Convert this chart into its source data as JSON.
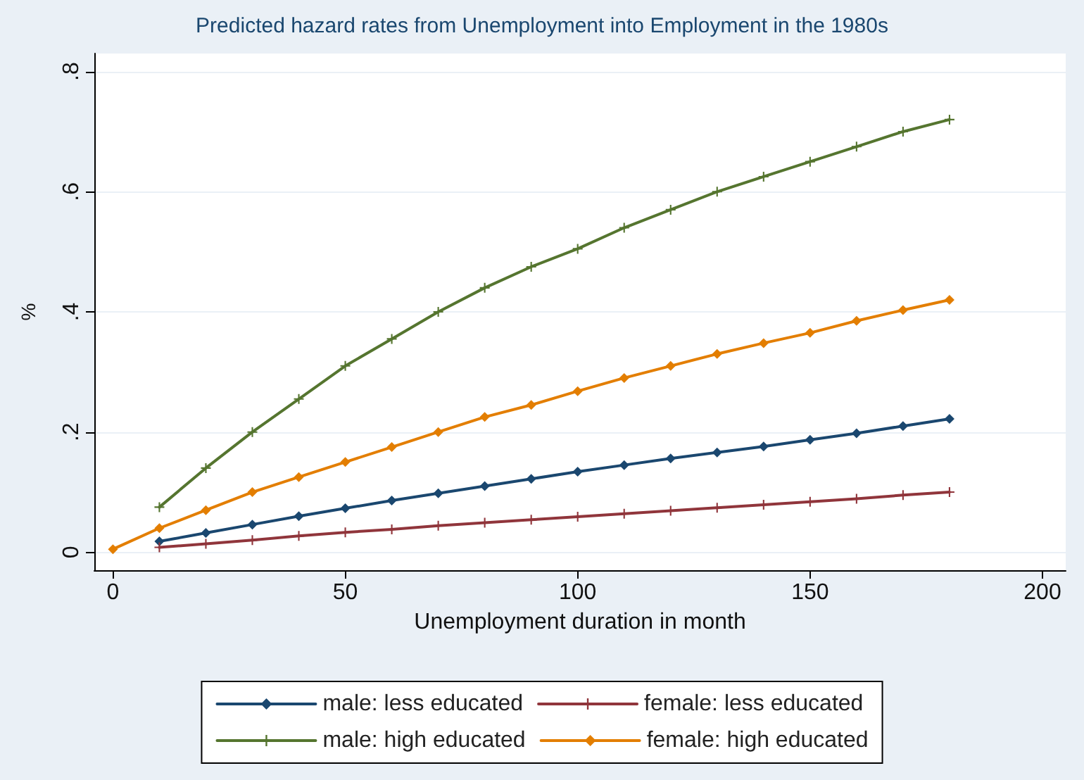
{
  "chart_data": {
    "type": "line",
    "title": "Predicted hazard rates from Unemployment into Employment in the 1980s",
    "xlabel": "Unemployment duration in month",
    "ylabel": "%",
    "x": [
      0,
      10,
      20,
      30,
      40,
      50,
      60,
      70,
      80,
      90,
      100,
      110,
      120,
      130,
      140,
      150,
      160,
      170,
      180
    ],
    "series": [
      {
        "name": "male: less educated",
        "color": "#1a476f",
        "marker": "diamond",
        "values": [
          null,
          0.018,
          0.032,
          0.046,
          0.06,
          0.073,
          0.086,
          0.098,
          0.11,
          0.122,
          0.134,
          0.145,
          0.156,
          0.166,
          0.176,
          0.187,
          0.198,
          0.21,
          0.222
        ]
      },
      {
        "name": "female: less educated",
        "color": "#90353b",
        "marker": "cross",
        "values": [
          null,
          0.008,
          0.014,
          0.02,
          0.027,
          0.033,
          0.038,
          0.044,
          0.049,
          0.054,
          0.059,
          0.064,
          0.069,
          0.074,
          0.079,
          0.084,
          0.089,
          0.095,
          0.1
        ]
      },
      {
        "name": "male: high educated",
        "color": "#55752f",
        "marker": "cross",
        "values": [
          null,
          0.075,
          0.14,
          0.2,
          0.255,
          0.31,
          0.355,
          0.4,
          0.44,
          0.475,
          0.505,
          0.54,
          0.57,
          0.6,
          0.625,
          0.65,
          0.675,
          0.7,
          0.72
        ]
      },
      {
        "name": "female: high educated",
        "color": "#e37e00",
        "marker": "diamond",
        "values": [
          0.005,
          0.04,
          0.07,
          0.1,
          0.125,
          0.15,
          0.175,
          0.2,
          0.225,
          0.245,
          0.268,
          0.29,
          0.31,
          0.33,
          0.348,
          0.365,
          0.385,
          0.403,
          0.42
        ]
      }
    ],
    "xlim": [
      -4,
      205
    ],
    "xticks": [
      0,
      50,
      100,
      150,
      200
    ],
    "ylim": [
      -0.03,
      0.83
    ],
    "yticks": [
      0,
      {
        "value": 0.2,
        "label": ".2"
      },
      {
        "value": 0.4,
        "label": ".4"
      },
      {
        "value": 0.6,
        "label": ".6"
      },
      {
        "value": 0.8,
        "label": ".8"
      }
    ],
    "grid": "y",
    "legend": "bottom",
    "line_style": "solid"
  }
}
